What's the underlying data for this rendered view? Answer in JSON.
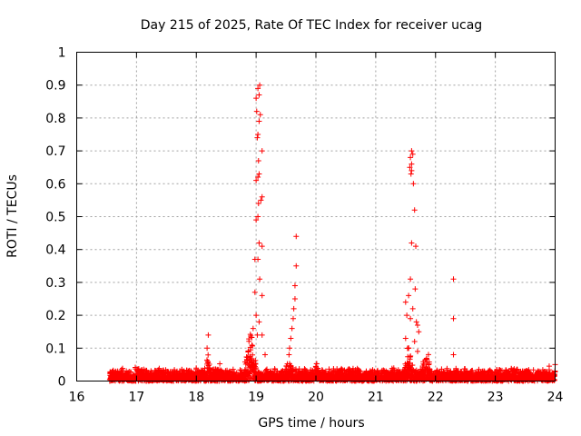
{
  "chart_data": {
    "type": "scatter",
    "title": "Day 215 of 2025, Rate Of TEC Index for receiver ucag",
    "xlabel": "GPS time / hours",
    "ylabel": "ROTI / TECUs",
    "xlim": [
      16,
      24
    ],
    "ylim": [
      0,
      1
    ],
    "xticks": [
      "16",
      "17",
      "18",
      "19",
      "20",
      "21",
      "22",
      "23",
      "24"
    ],
    "yticks": [
      "0",
      "0.1",
      "0.2",
      "0.3",
      "0.4",
      "0.5",
      "0.6",
      "0.7",
      "0.8",
      "0.9",
      "1"
    ],
    "grid": true,
    "marker": "+",
    "color": "#ff0000",
    "series": [
      {
        "name": "ROTI",
        "background": {
          "x_start": 16.55,
          "x_end": 24.0,
          "typical_max": 0.04
        },
        "bumps": [
          {
            "x": 17.0,
            "width": 0.08,
            "height": 0.06
          },
          {
            "x": 18.2,
            "width": 0.04,
            "height": 0.13
          },
          {
            "x": 18.4,
            "width": 0.05,
            "height": 0.06
          },
          {
            "x": 18.9,
            "width": 0.12,
            "height": 0.16
          },
          {
            "x": 19.55,
            "width": 0.1,
            "height": 0.08
          },
          {
            "x": 20.0,
            "width": 0.05,
            "height": 0.07
          },
          {
            "x": 21.55,
            "width": 0.1,
            "height": 0.12
          },
          {
            "x": 21.85,
            "width": 0.1,
            "height": 0.1
          },
          {
            "x": 23.0,
            "width": 0.1,
            "height": 0.05
          },
          {
            "x": 23.9,
            "width": 0.05,
            "height": 0.05
          }
        ],
        "points": [
          [
            19.0,
            0.86
          ],
          [
            19.01,
            0.82
          ],
          [
            19.03,
            0.89
          ],
          [
            19.05,
            0.87
          ],
          [
            19.06,
            0.9
          ],
          [
            19.07,
            0.81
          ],
          [
            19.05,
            0.79
          ],
          [
            19.02,
            0.74
          ],
          [
            19.03,
            0.75
          ],
          [
            19.1,
            0.7
          ],
          [
            19.04,
            0.67
          ],
          [
            19.03,
            0.62
          ],
          [
            19.0,
            0.61
          ],
          [
            19.05,
            0.63
          ],
          [
            19.08,
            0.55
          ],
          [
            19.1,
            0.56
          ],
          [
            19.04,
            0.54
          ],
          [
            19.0,
            0.49
          ],
          [
            19.03,
            0.5
          ],
          [
            19.05,
            0.42
          ],
          [
            19.1,
            0.41
          ],
          [
            18.98,
            0.37
          ],
          [
            19.03,
            0.37
          ],
          [
            19.06,
            0.31
          ],
          [
            18.98,
            0.27
          ],
          [
            19.1,
            0.26
          ],
          [
            19.0,
            0.2
          ],
          [
            19.05,
            0.18
          ],
          [
            18.95,
            0.16
          ],
          [
            19.02,
            0.14
          ],
          [
            19.1,
            0.14
          ],
          [
            19.15,
            0.08
          ],
          [
            19.67,
            0.44
          ],
          [
            19.67,
            0.35
          ],
          [
            19.65,
            0.29
          ],
          [
            19.65,
            0.25
          ],
          [
            19.63,
            0.22
          ],
          [
            19.62,
            0.19
          ],
          [
            19.6,
            0.16
          ],
          [
            19.58,
            0.13
          ],
          [
            19.56,
            0.1
          ],
          [
            19.55,
            0.08
          ],
          [
            21.6,
            0.7
          ],
          [
            21.62,
            0.69
          ],
          [
            21.58,
            0.68
          ],
          [
            21.6,
            0.66
          ],
          [
            21.57,
            0.65
          ],
          [
            21.6,
            0.64
          ],
          [
            21.59,
            0.63
          ],
          [
            21.63,
            0.6
          ],
          [
            21.65,
            0.52
          ],
          [
            21.6,
            0.42
          ],
          [
            21.67,
            0.41
          ],
          [
            21.58,
            0.31
          ],
          [
            21.66,
            0.28
          ],
          [
            21.55,
            0.26
          ],
          [
            21.5,
            0.24
          ],
          [
            21.62,
            0.22
          ],
          [
            21.52,
            0.2
          ],
          [
            21.58,
            0.19
          ],
          [
            21.68,
            0.18
          ],
          [
            21.7,
            0.17
          ],
          [
            21.72,
            0.15
          ],
          [
            21.5,
            0.13
          ],
          [
            21.65,
            0.12
          ],
          [
            21.55,
            0.1
          ],
          [
            21.7,
            0.09
          ],
          [
            22.3,
            0.31
          ],
          [
            22.3,
            0.19
          ],
          [
            22.3,
            0.08
          ],
          [
            18.2,
            0.14
          ],
          [
            18.18,
            0.1
          ],
          [
            24.0,
            0.05
          ]
        ]
      }
    ]
  }
}
